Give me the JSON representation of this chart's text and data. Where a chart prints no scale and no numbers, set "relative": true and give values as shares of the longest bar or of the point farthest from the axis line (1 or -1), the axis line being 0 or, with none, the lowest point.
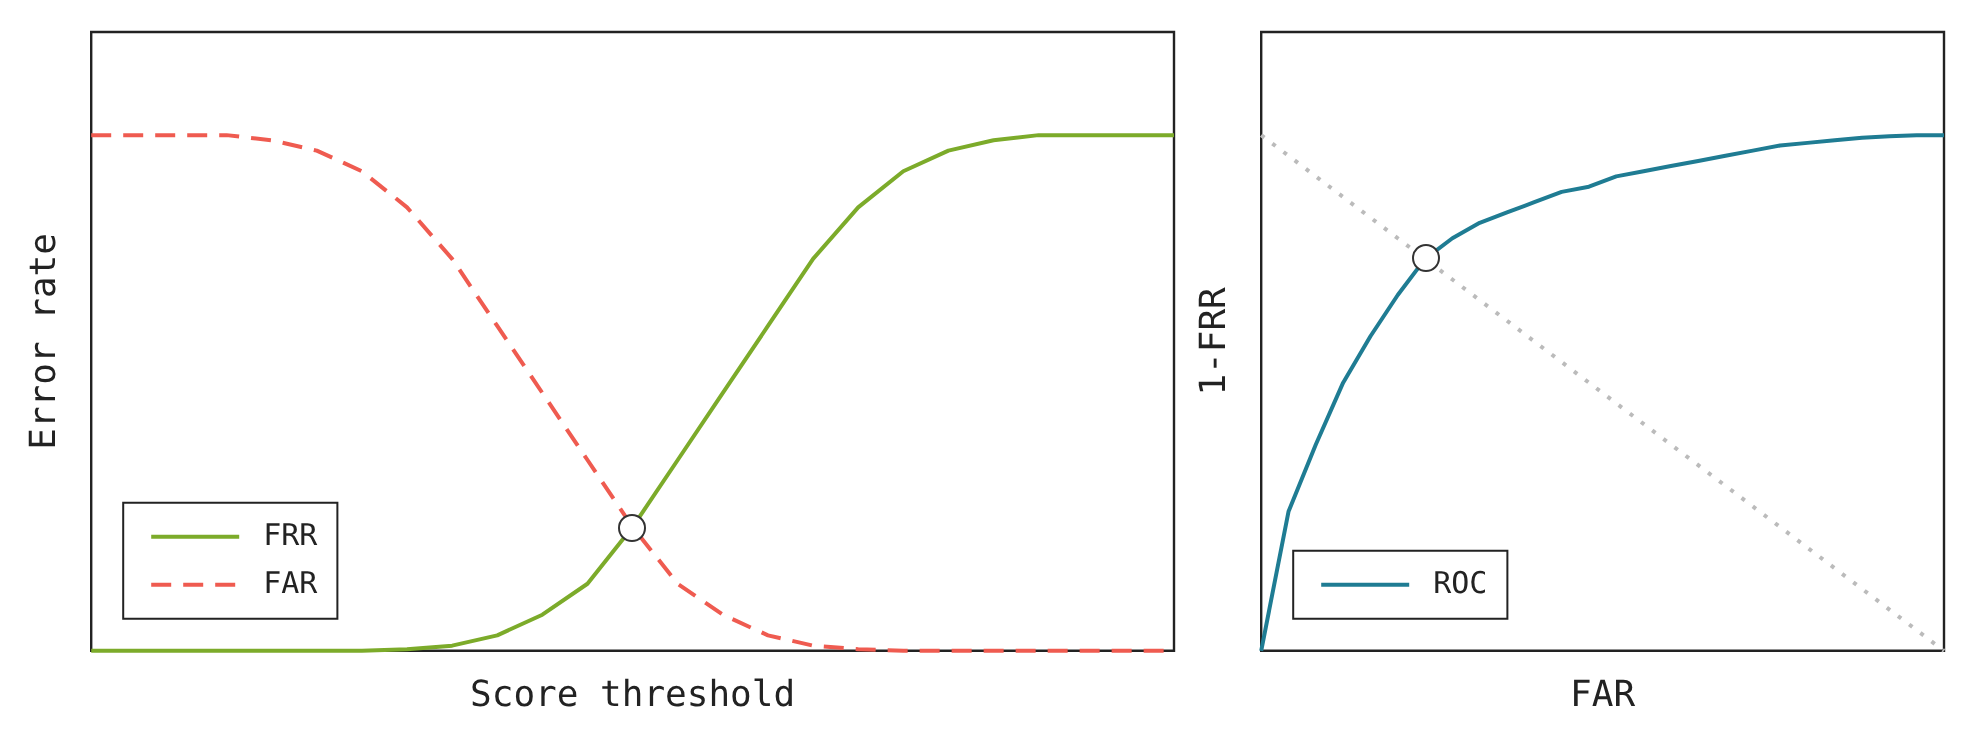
{
  "chart_data": [
    {
      "type": "line",
      "xlabel": "Score threshold",
      "ylabel": "Error rate",
      "relative": true,
      "legend": "bottom left",
      "marker": "none",
      "grid": false,
      "categories": [
        null,
        null,
        null,
        null,
        null,
        null,
        null,
        null,
        null,
        null,
        null,
        null,
        null,
        null,
        null,
        null,
        null,
        null,
        null,
        null,
        null,
        null,
        null,
        null,
        null
      ],
      "series": [
        {
          "name": "FRR",
          "color": "#7cab2a",
          "line_style": "solid",
          "values": [
            0,
            0,
            0,
            0,
            0,
            0,
            0,
            0.003,
            0.01,
            0.03,
            0.07,
            0.13,
            0.24,
            0.37,
            0.5,
            0.63,
            0.76,
            0.86,
            0.93,
            0.97,
            0.99,
            1,
            1,
            1,
            1
          ]
        },
        {
          "name": "FAR",
          "color": "#ef5b50",
          "line_style": "dashed",
          "values": [
            1,
            1,
            1,
            1,
            0.99,
            0.97,
            0.93,
            0.86,
            0.76,
            0.63,
            0.5,
            0.37,
            0.24,
            0.13,
            0.07,
            0.03,
            0.01,
            0.003,
            0,
            0,
            0,
            0,
            0,
            0,
            0
          ]
        }
      ]
    },
    {
      "type": "line",
      "xlabel": "FAR",
      "ylabel": "1-FRR",
      "relative": true,
      "legend": "bottom left",
      "marker": "none",
      "grid": false,
      "categories": [
        null,
        null,
        null,
        null,
        null,
        null,
        null,
        null,
        null,
        null,
        null,
        null,
        null,
        null,
        null,
        null,
        null,
        null,
        null,
        null,
        null,
        null,
        null,
        null,
        null,
        null
      ],
      "series": [
        {
          "color": "#bbbbbb",
          "line_style": "dotted",
          "values": [
            1,
            0.96,
            0.92,
            0.88,
            0.84,
            0.8,
            0.76,
            0.72,
            0.68,
            0.64,
            0.6,
            0.56,
            0.52,
            0.48,
            0.44,
            0.4,
            0.36,
            0.32,
            0.28,
            0.24,
            0.2,
            0.16,
            0.12,
            0.08,
            0.04,
            0
          ]
        },
        {
          "name": "ROC",
          "color": "#1f7c93",
          "line_style": "solid",
          "values": [
            0,
            0.27,
            0.4,
            0.52,
            0.61,
            0.69,
            0.76,
            0.8,
            0.83,
            0.85,
            0.87,
            0.89,
            0.9,
            0.92,
            0.93,
            0.94,
            0.95,
            0.96,
            0.97,
            0.98,
            0.985,
            0.99,
            0.995,
            0.998,
            1,
            1
          ]
        }
      ]
    }
  ]
}
